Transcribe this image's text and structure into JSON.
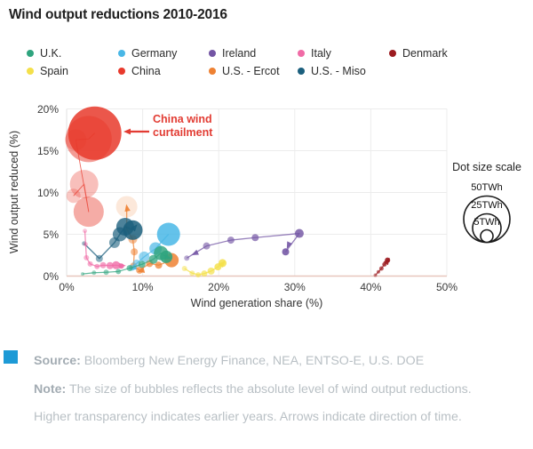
{
  "title": "Wind output reductions 2010-2016",
  "legend": {
    "rows": [
      [
        {
          "label": "U.K.",
          "color": "#2fa47e"
        },
        {
          "label": "Germany",
          "color": "#49b7e6"
        },
        {
          "label": "Ireland",
          "color": "#7355a4"
        },
        {
          "label": "Italy",
          "color": "#f06ba6"
        },
        {
          "label": "Denmark",
          "color": "#9c1b20"
        }
      ],
      [
        {
          "label": "Spain",
          "color": "#f4e04a"
        },
        {
          "label": "China",
          "color": "#e8392c"
        },
        {
          "label": "U.S. - Ercot",
          "color": "#ee8133"
        },
        {
          "label": "U.S. - Miso",
          "color": "#1b5f7d"
        }
      ]
    ]
  },
  "annotation": {
    "line1": "China wind",
    "line2": "curtailment",
    "color": "#e23c33"
  },
  "chart_data": {
    "type": "scatter",
    "title": "Wind output reductions 2010-2016",
    "xlabel": "Wind generation share (%)",
    "ylabel": "Wind output reduced (%)",
    "xlim": [
      0,
      50
    ],
    "ylim": [
      0,
      20
    ],
    "x_ticks": [
      {
        "value": 0,
        "label": "0%"
      },
      {
        "value": 10,
        "label": "10%"
      },
      {
        "value": 20,
        "label": "20%"
      },
      {
        "value": 30,
        "label": "30%"
      },
      {
        "value": 40,
        "label": "40%"
      },
      {
        "value": 50,
        "label": "50%"
      }
    ],
    "y_ticks": [
      {
        "value": 20,
        "label": "20%"
      },
      {
        "value": 15,
        "label": "15%"
      },
      {
        "value": 10,
        "label": "10%"
      },
      {
        "value": 5,
        "label": "5%"
      },
      {
        "value": 0,
        "label": "0%"
      }
    ],
    "grid": {
      "x_lines": [
        0,
        10,
        20,
        30,
        40,
        50
      ],
      "y_lines": [
        5,
        10,
        15,
        20
      ]
    },
    "bubble_note": "bubble size = absolute wind output reduction (TWh); opacity = year (transparent = earlier)",
    "size_legend": {
      "title": "Dot size scale",
      "labels": [
        "50TWh",
        "25TWh",
        "5TWh"
      ],
      "values_twh": [
        50,
        25,
        5
      ]
    },
    "series": [
      {
        "name": "China",
        "color": "#e8392c",
        "line_width": 0.9,
        "points": [
          {
            "x": 0.9,
            "y": 9.6,
            "r": 8,
            "o": 0.28
          },
          {
            "x": 2.3,
            "y": 11.0,
            "r": 16,
            "o": 0.32
          },
          {
            "x": 2.9,
            "y": 7.7,
            "r": 17,
            "o": 0.42
          },
          {
            "x": 1.2,
            "y": 16.3,
            "r": 12,
            "o": 0.3
          },
          {
            "x": 2.9,
            "y": 16.4,
            "r": 26,
            "o": 0.5
          },
          {
            "x": 3.7,
            "y": 17.1,
            "r": 30,
            "o": 0.85
          }
        ],
        "arrows": []
      },
      {
        "name": "U.S. - Ercot",
        "color": "#ee8133",
        "line_width": 1.3,
        "points": [
          {
            "x": 13.8,
            "y": 1.9,
            "r": 8,
            "o": 0.85
          },
          {
            "x": 12.1,
            "y": 1.3,
            "r": 4,
            "o": 0.75
          },
          {
            "x": 10.9,
            "y": 1.5,
            "r": 4,
            "o": 0.7
          },
          {
            "x": 9.6,
            "y": 0.7,
            "r": 4,
            "o": 0.65
          },
          {
            "x": 8.8,
            "y": 1.2,
            "r": 4,
            "o": 0.6
          },
          {
            "x": 8.9,
            "y": 2.9,
            "r": 4,
            "o": 0.55
          },
          {
            "x": 8.7,
            "y": 4.4,
            "r": 5,
            "o": 0.5
          },
          {
            "x": 7.9,
            "y": 5.6,
            "r": 4,
            "o": 0.4
          },
          {
            "x": 7.9,
            "y": 8.3,
            "r": 12,
            "o": 0.18
          }
        ],
        "arrows": [
          {
            "x": 9.3,
            "y": 0.5,
            "a": 195
          },
          {
            "x": 7.85,
            "y": 8.6,
            "a": 100
          }
        ]
      },
      {
        "name": "U.S. - Miso",
        "color": "#1b5f7d",
        "line_width": 1.4,
        "points": [
          {
            "x": 2.3,
            "y": 3.9,
            "r": 2.5,
            "o": 0.45
          },
          {
            "x": 4.3,
            "y": 2.1,
            "r": 4,
            "o": 0.5
          },
          {
            "x": 6.3,
            "y": 4.0,
            "r": 6,
            "o": 0.6
          },
          {
            "x": 7.0,
            "y": 5.0,
            "r": 8,
            "o": 0.7
          },
          {
            "x": 7.7,
            "y": 5.9,
            "r": 10,
            "o": 0.78
          },
          {
            "x": 8.7,
            "y": 5.5,
            "r": 11,
            "o": 0.85
          }
        ],
        "arrows": [
          {
            "x": 9.3,
            "y": 6.2,
            "a": 50
          }
        ]
      },
      {
        "name": "Germany",
        "color": "#49b7e6",
        "line_width": 1.3,
        "points": [
          {
            "x": 13.4,
            "y": 5.0,
            "r": 13,
            "o": 0.85
          },
          {
            "x": 11.7,
            "y": 3.3,
            "r": 7,
            "o": 0.7
          },
          {
            "x": 10.2,
            "y": 2.3,
            "r": 6,
            "o": 0.6
          },
          {
            "x": 9.2,
            "y": 1.5,
            "r": 4.5,
            "o": 0.55
          },
          {
            "x": 8.6,
            "y": 1.0,
            "r": 3.5,
            "o": 0.5
          }
        ],
        "arrows": [
          {
            "x": 8.25,
            "y": 0.75,
            "a": 205
          }
        ]
      },
      {
        "name": "U.K.",
        "color": "#2fa47e",
        "line_width": 1.2,
        "points": [
          {
            "x": 2.1,
            "y": 0.25,
            "r": 2,
            "o": 0.45
          },
          {
            "x": 3.6,
            "y": 0.4,
            "r": 2.5,
            "o": 0.5
          },
          {
            "x": 5.2,
            "y": 0.45,
            "r": 3,
            "o": 0.55
          },
          {
            "x": 6.8,
            "y": 0.55,
            "r": 3,
            "o": 0.6
          },
          {
            "x": 8.3,
            "y": 0.95,
            "r": 3.5,
            "o": 0.65
          },
          {
            "x": 9.9,
            "y": 1.4,
            "r": 4,
            "o": 0.7
          },
          {
            "x": 11.4,
            "y": 2.0,
            "r": 5,
            "o": 0.75
          },
          {
            "x": 12.4,
            "y": 2.75,
            "r": 8,
            "o": 0.82
          },
          {
            "x": 13.1,
            "y": 2.3,
            "r": 7,
            "o": 0.88
          }
        ],
        "arrows": [
          {
            "x": 13.8,
            "y": 2.1,
            "a": -15
          }
        ]
      },
      {
        "name": "Italy",
        "color": "#f06ba6",
        "line_width": 1.3,
        "points": [
          {
            "x": 2.4,
            "y": 5.4,
            "r": 2.5,
            "o": 0.4
          },
          {
            "x": 2.5,
            "y": 3.8,
            "r": 2.5,
            "o": 0.45
          },
          {
            "x": 2.6,
            "y": 2.2,
            "r": 3,
            "o": 0.5
          },
          {
            "x": 3.1,
            "y": 1.45,
            "r": 3,
            "o": 0.55
          },
          {
            "x": 4.0,
            "y": 1.15,
            "r": 3,
            "o": 0.6
          },
          {
            "x": 4.8,
            "y": 1.3,
            "r": 3.5,
            "o": 0.65
          },
          {
            "x": 5.7,
            "y": 1.25,
            "r": 4,
            "o": 0.72
          },
          {
            "x": 6.5,
            "y": 1.3,
            "r": 4.5,
            "o": 0.8
          },
          {
            "x": 7.2,
            "y": 1.2,
            "r": 3,
            "o": 0.85
          }
        ],
        "arrows": [
          {
            "x": 7.8,
            "y": 1.25,
            "a": 0
          }
        ]
      },
      {
        "name": "Spain",
        "color": "#f4e04a",
        "line_width": 1.4,
        "points": [
          {
            "x": 15.5,
            "y": 0.9,
            "r": 3,
            "o": 0.5
          },
          {
            "x": 16.5,
            "y": 0.35,
            "r": 3,
            "o": 0.55
          },
          {
            "x": 17.3,
            "y": 0.15,
            "r": 3,
            "o": 0.6
          },
          {
            "x": 18.1,
            "y": 0.3,
            "r": 3.5,
            "o": 0.65
          },
          {
            "x": 19.0,
            "y": 0.6,
            "r": 4,
            "o": 0.7
          },
          {
            "x": 19.9,
            "y": 1.1,
            "r": 4,
            "o": 0.8
          },
          {
            "x": 20.5,
            "y": 1.55,
            "r": 4.5,
            "o": 0.85
          }
        ],
        "arrows": [
          {
            "x": 20.9,
            "y": 1.85,
            "a": 45
          }
        ]
      },
      {
        "name": "Ireland",
        "color": "#7355a4",
        "line_width": 1.3,
        "points": [
          {
            "x": 15.8,
            "y": 2.15,
            "r": 3,
            "o": 0.5
          },
          {
            "x": 18.4,
            "y": 3.6,
            "r": 4,
            "o": 0.6
          },
          {
            "x": 21.6,
            "y": 4.3,
            "r": 4,
            "o": 0.65
          },
          {
            "x": 24.8,
            "y": 4.6,
            "r": 4,
            "o": 0.7
          },
          {
            "x": 30.6,
            "y": 5.1,
            "r": 5,
            "o": 0.82
          },
          {
            "x": 28.8,
            "y": 2.9,
            "r": 4,
            "o": 0.88
          }
        ],
        "arrows": [
          {
            "x": 16.4,
            "y": 2.5,
            "a": 205
          },
          {
            "x": 28.95,
            "y": 3.25,
            "a": 245
          }
        ]
      },
      {
        "name": "Denmark",
        "color": "#9c1b20",
        "line_width": 1.2,
        "points": [
          {
            "x": 40.6,
            "y": 0.1,
            "r": 2,
            "o": 0.5
          },
          {
            "x": 41.0,
            "y": 0.5,
            "r": 2,
            "o": 0.6
          },
          {
            "x": 41.4,
            "y": 0.9,
            "r": 2.5,
            "o": 0.7
          },
          {
            "x": 41.8,
            "y": 1.4,
            "r": 2.5,
            "o": 0.8
          },
          {
            "x": 42.2,
            "y": 1.9,
            "r": 3,
            "o": 0.9
          }
        ],
        "arrows": [
          {
            "x": 42.5,
            "y": 2.2,
            "a": 55
          }
        ]
      }
    ]
  },
  "footer": {
    "source_label": "Source:",
    "source_text": " Bloomberg New Energy Finance, NEA, ENTSO-E, U.S. DOE",
    "note_label": "Note:",
    "note_text": " The size of bubbles reflects the absolute level of wind output reductions. Higher transparency indicates earlier years. Arrows indicate direction of time."
  }
}
